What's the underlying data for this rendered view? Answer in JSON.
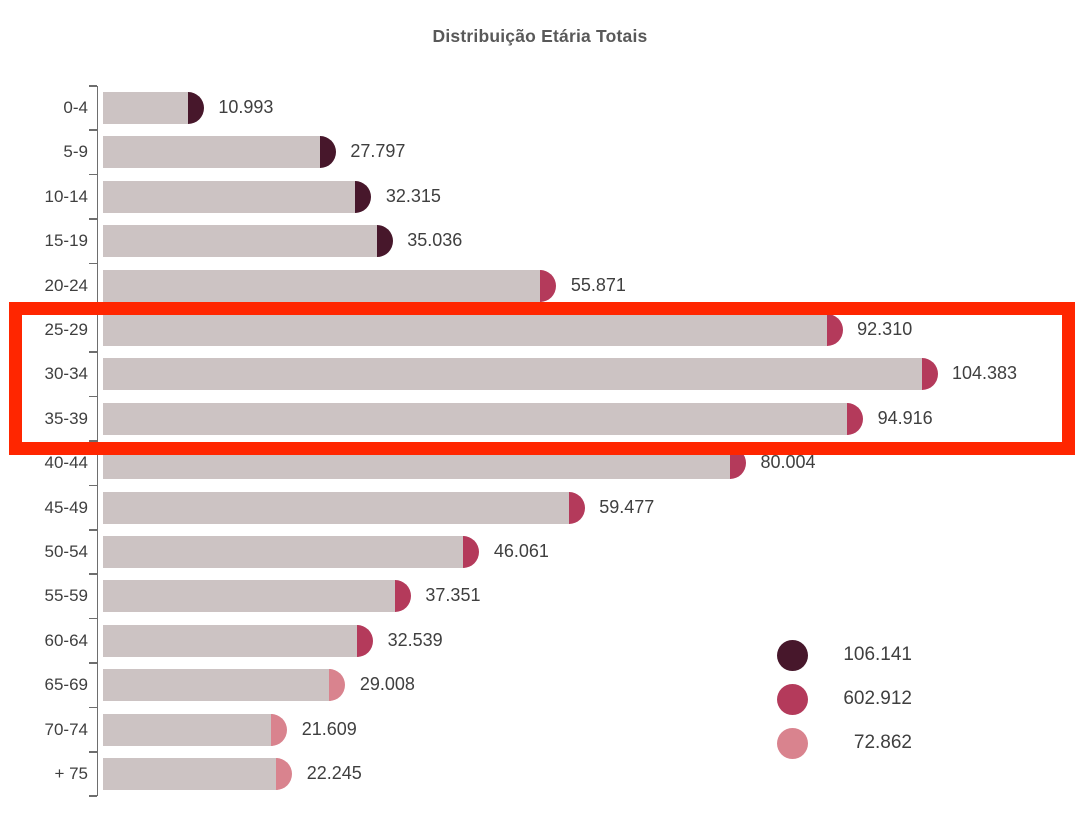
{
  "title": "Distribuição Etária Totais",
  "chart_data": {
    "type": "bar",
    "orientation": "horizontal",
    "title": "Distribuição Etária Totais",
    "xlabel": "",
    "ylabel": "",
    "grid": false,
    "xlim": [
      0,
      110000
    ],
    "categories": [
      "0-4",
      "5-9",
      "10-14",
      "15-19",
      "20-24",
      "25-29",
      "30-34",
      "35-39",
      "40-44",
      "45-49",
      "50-54",
      "55-59",
      "60-64",
      "65-69",
      "70-74",
      "+ 75"
    ],
    "values": [
      10993,
      27797,
      32315,
      35036,
      55871,
      92310,
      104383,
      94916,
      80004,
      59477,
      46061,
      37351,
      32539,
      29008,
      21609,
      22245
    ],
    "value_labels": [
      "10.993",
      "27.797",
      "32.315",
      "35.036",
      "55.871",
      "92.310",
      "104.383",
      "94.916",
      "80.004",
      "59.477",
      "46.061",
      "37.351",
      "32.539",
      "29.008",
      "21.609",
      "22.245"
    ],
    "cap_group": [
      "dark",
      "dark",
      "dark",
      "dark",
      "mid",
      "mid",
      "mid",
      "mid",
      "mid",
      "mid",
      "mid",
      "mid",
      "mid",
      "light",
      "light",
      "light"
    ],
    "colors": {
      "bar_fill": "#CCC3C3",
      "cap_dark": "#47172B",
      "cap_mid": "#B43A5B",
      "cap_light": "#D9838E",
      "axis": "#6E6E6E",
      "title_text": "#595959",
      "label_text": "#3F3F3F",
      "highlight_border": "#FF2600"
    },
    "legend": {
      "position": "bottom-right",
      "items": [
        {
          "swatch": "dark",
          "color": "#47172B",
          "label": "106.141"
        },
        {
          "swatch": "mid",
          "color": "#B43A5B",
          "label": "602.912"
        },
        {
          "swatch": "light",
          "color": "#D9838E",
          "label": "72.862"
        }
      ]
    },
    "highlight": {
      "categories": [
        "25-29",
        "30-34",
        "35-39"
      ],
      "style": "red-box",
      "color": "#FF2600"
    }
  }
}
